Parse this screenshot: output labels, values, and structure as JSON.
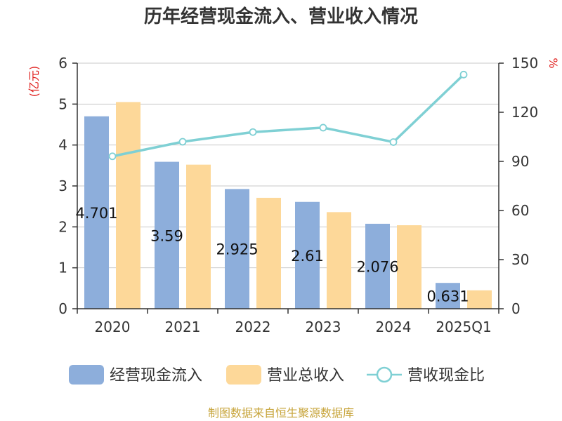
{
  "chart_data": {
    "type": "bar",
    "title": "历年经营现金流入、营业收入情况",
    "categories": [
      "2020",
      "2021",
      "2022",
      "2023",
      "2024",
      "2025Q1"
    ],
    "y_left": {
      "unit": "(亿元)",
      "range": [
        0,
        6
      ],
      "ticks": [
        "0",
        "1",
        "2",
        "3",
        "4",
        "5",
        "6"
      ]
    },
    "y_right": {
      "unit": "%",
      "range": [
        0,
        150
      ],
      "ticks": [
        "0",
        "30",
        "60",
        "90",
        "120",
        "150"
      ]
    },
    "series": [
      {
        "name": "经营现金流入",
        "type": "bar",
        "axis": "left",
        "color": "#8daedb",
        "values": [
          4.701,
          3.59,
          2.925,
          2.61,
          2.076,
          0.631
        ],
        "labels": [
          "4.701",
          "3.59",
          "2.925",
          "2.61",
          "2.076",
          "0.631"
        ]
      },
      {
        "name": "营业总收入",
        "type": "bar",
        "axis": "left",
        "color": "#fdd899",
        "values": [
          5.05,
          3.52,
          2.71,
          2.36,
          2.04,
          0.45
        ]
      },
      {
        "name": "营收现金比",
        "type": "line",
        "axis": "right",
        "color": "#7fd0d4",
        "values": [
          93.1,
          102.0,
          107.9,
          110.6,
          101.8,
          143.0
        ]
      }
    ],
    "grid": true,
    "legend_position": "bottom"
  },
  "source": "制图数据来自恒生聚源数据库"
}
